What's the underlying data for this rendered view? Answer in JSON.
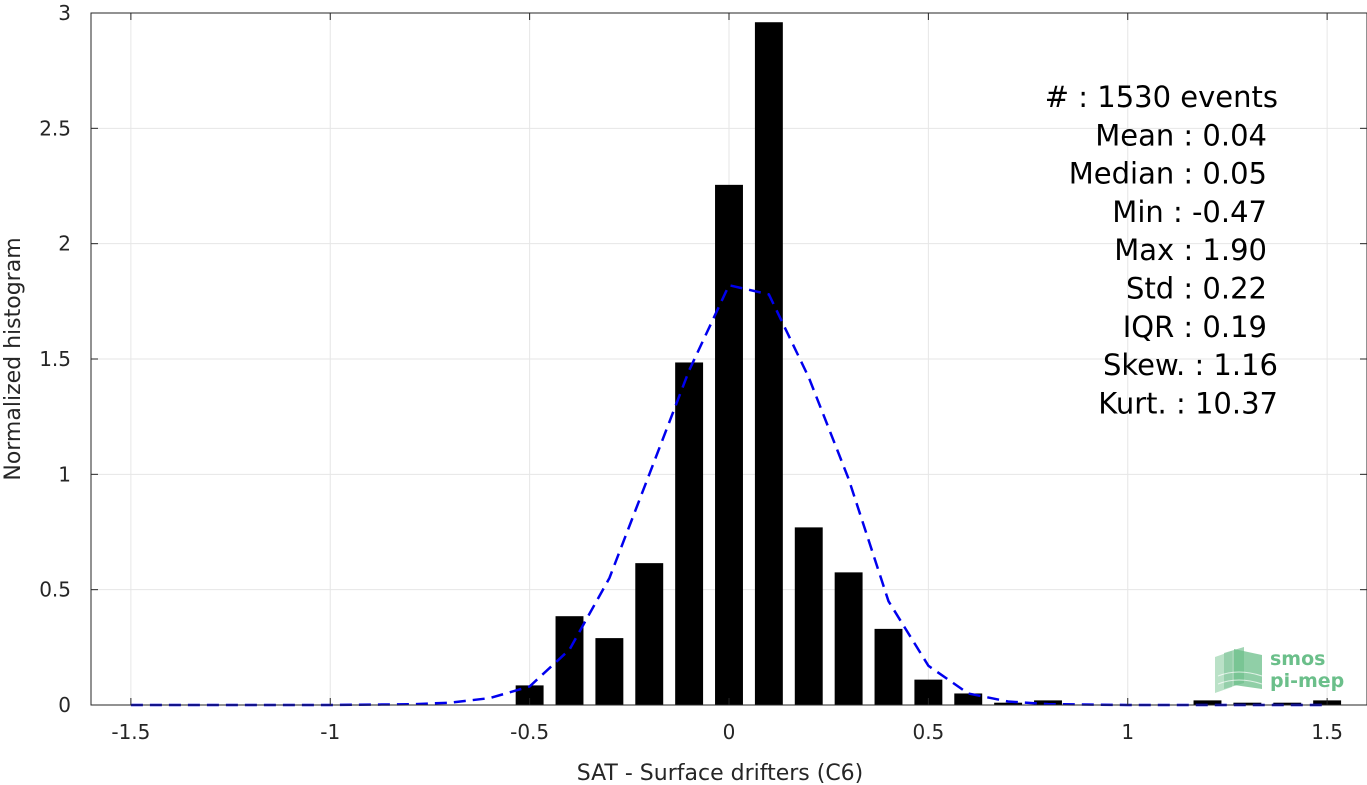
{
  "chart_data": {
    "type": "bar",
    "xlabel": "SAT - Surface drifters (C6)",
    "ylabel": "Normalized histogram",
    "xlim": [
      -1.6,
      1.6
    ],
    "ylim": [
      0,
      3
    ],
    "xticks": [
      -1.5,
      -1,
      -0.5,
      0,
      0.5,
      1,
      1.5
    ],
    "xtick_labels": [
      "-1.5",
      "-1",
      "-0.5",
      "0",
      "0.5",
      "1",
      "1.5"
    ],
    "yticks": [
      0,
      0.5,
      1,
      1.5,
      2,
      2.5,
      3
    ],
    "ytick_labels": [
      "0",
      "0.5",
      "1",
      "1.5",
      "2",
      "2.5",
      "3"
    ],
    "grid": true,
    "bar_color": "#000000",
    "bar_width": 0.07,
    "bars": {
      "x": [
        -0.5,
        -0.4,
        -0.3,
        -0.2,
        -0.1,
        0.0,
        0.1,
        0.2,
        0.3,
        0.4,
        0.5,
        0.6,
        0.7,
        0.8,
        1.2,
        1.3,
        1.4,
        1.5
      ],
      "y": [
        0.085,
        0.385,
        0.29,
        0.615,
        1.485,
        2.255,
        2.96,
        0.77,
        0.575,
        0.33,
        0.11,
        0.05,
        0.01,
        0.02,
        0.02,
        0.01,
        0.01,
        0.02
      ]
    },
    "fit_curve": {
      "style": "dashed",
      "color": "#0000ee",
      "x": [
        -1.5,
        -1.0,
        -0.8,
        -0.7,
        -0.6,
        -0.5,
        -0.4,
        -0.3,
        -0.2,
        -0.1,
        0.0,
        0.1,
        0.2,
        0.3,
        0.4,
        0.5,
        0.6,
        0.7,
        0.8,
        1.0,
        1.5
      ],
      "y": [
        0.0,
        0.0,
        0.003,
        0.01,
        0.03,
        0.08,
        0.24,
        0.55,
        1.0,
        1.45,
        1.82,
        1.78,
        1.42,
        0.98,
        0.45,
        0.17,
        0.05,
        0.015,
        0.004,
        0.0,
        0.0
      ]
    },
    "annotations": [
      "#  : 1530 events",
      "Mean : 0.04",
      "Median : 0.05",
      "Min : -0.47",
      "Max : 1.90",
      "Std : 0.22",
      "IQR : 0.19",
      "Skew. : 1.16",
      "Kurt. : 10.37"
    ],
    "logo": {
      "line1": "smos",
      "line2": "pi-mep",
      "color": "#6bbf8a"
    }
  }
}
